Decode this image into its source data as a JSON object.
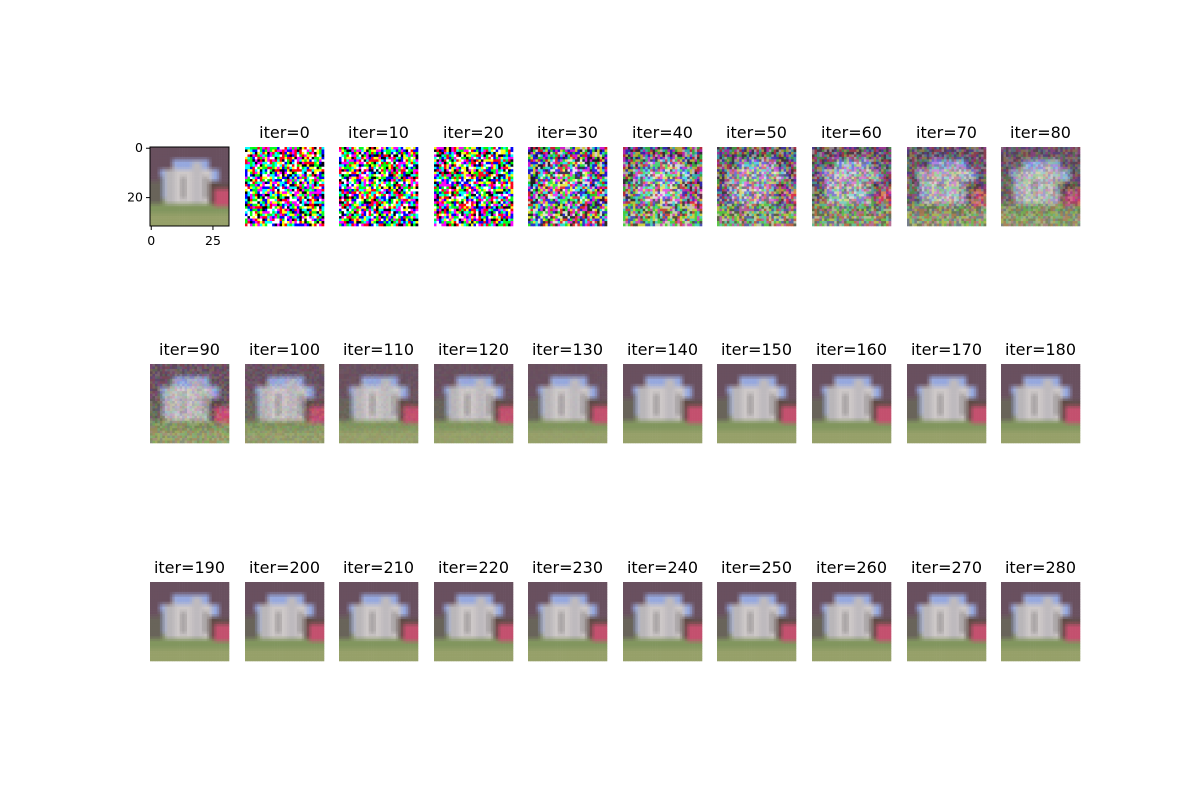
{
  "chart_data": {
    "type": "image-grid",
    "image_size": [
      32,
      32
    ],
    "reference_panel": {
      "xticks": [
        0,
        25
      ],
      "yticks": [
        0,
        20
      ]
    },
    "panels": [
      {
        "title": "iter=0",
        "iter": 0,
        "noise": 1.0
      },
      {
        "title": "iter=10",
        "iter": 10,
        "noise": 1.0
      },
      {
        "title": "iter=20",
        "iter": 20,
        "noise": 0.97
      },
      {
        "title": "iter=30",
        "iter": 30,
        "noise": 0.7
      },
      {
        "title": "iter=40",
        "iter": 40,
        "noise": 0.5
      },
      {
        "title": "iter=50",
        "iter": 50,
        "noise": 0.38
      },
      {
        "title": "iter=60",
        "iter": 60,
        "noise": 0.3
      },
      {
        "title": "iter=70",
        "iter": 70,
        "noise": 0.22
      },
      {
        "title": "iter=80",
        "iter": 80,
        "noise": 0.16
      },
      {
        "title": "iter=90",
        "iter": 90,
        "noise": 0.1
      },
      {
        "title": "iter=100",
        "iter": 100,
        "noise": 0.06
      },
      {
        "title": "iter=110",
        "iter": 110,
        "noise": 0.03
      },
      {
        "title": "iter=120",
        "iter": 120,
        "noise": 0.02
      },
      {
        "title": "iter=130",
        "iter": 130,
        "noise": 0.01
      },
      {
        "title": "iter=140",
        "iter": 140,
        "noise": 0.0
      },
      {
        "title": "iter=150",
        "iter": 150,
        "noise": 0.0
      },
      {
        "title": "iter=160",
        "iter": 160,
        "noise": 0.0
      },
      {
        "title": "iter=170",
        "iter": 170,
        "noise": 0.0
      },
      {
        "title": "iter=180",
        "iter": 180,
        "noise": 0.0
      },
      {
        "title": "iter=190",
        "iter": 190,
        "noise": 0.0
      },
      {
        "title": "iter=200",
        "iter": 200,
        "noise": 0.0
      },
      {
        "title": "iter=210",
        "iter": 210,
        "noise": 0.0
      },
      {
        "title": "iter=220",
        "iter": 220,
        "noise": 0.0
      },
      {
        "title": "iter=230",
        "iter": 230,
        "noise": 0.0
      },
      {
        "title": "iter=240",
        "iter": 240,
        "noise": 0.0
      },
      {
        "title": "iter=250",
        "iter": 250,
        "noise": 0.0
      },
      {
        "title": "iter=260",
        "iter": 260,
        "noise": 0.0
      },
      {
        "title": "iter=270",
        "iter": 270,
        "noise": 0.0
      },
      {
        "title": "iter=280",
        "iter": 280,
        "noise": 0.0
      }
    ]
  }
}
